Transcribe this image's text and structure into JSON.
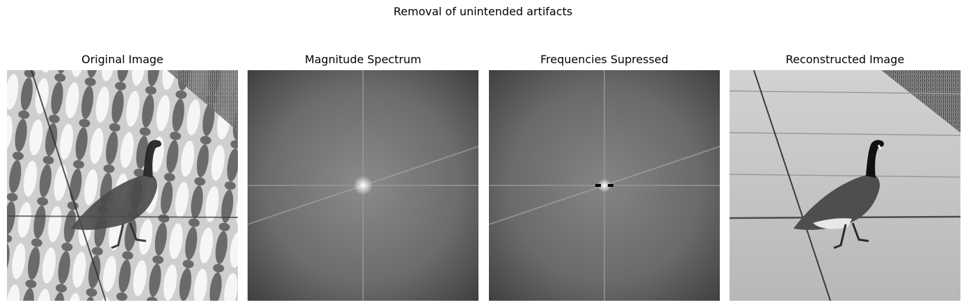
{
  "figure": {
    "suptitle": "Removal of unintended artifacts",
    "panels": [
      {
        "title": "Original Image"
      },
      {
        "title": "Magnitude Spectrum"
      },
      {
        "title": "Frequencies Supressed"
      },
      {
        "title": "Reconstructed Image"
      }
    ]
  }
}
